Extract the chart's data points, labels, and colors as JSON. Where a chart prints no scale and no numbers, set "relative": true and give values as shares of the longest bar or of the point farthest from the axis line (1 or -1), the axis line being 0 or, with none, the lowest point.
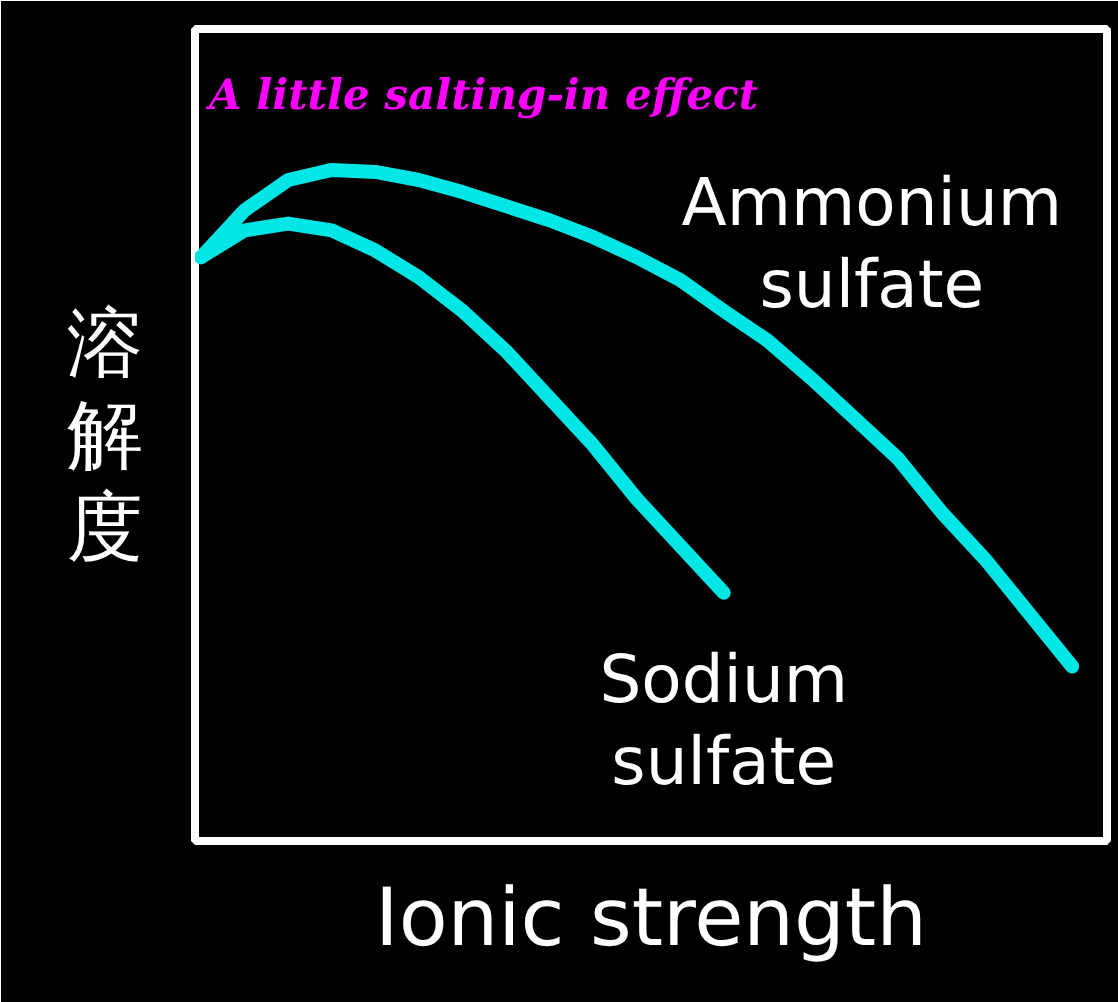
{
  "chart_data": {
    "type": "line",
    "relative": true,
    "xlabel": "Ionic strength",
    "ylabel": "溶解度",
    "categories": [
      null,
      null,
      null,
      null,
      null,
      null,
      null,
      null,
      null,
      null,
      null,
      null,
      null,
      null,
      null,
      null,
      null,
      null,
      null,
      null,
      null
    ],
    "series": [
      {
        "name": "Ammonium sulfate",
        "color": "#00e5e5",
        "values": [
          0.87,
          0.94,
          0.985,
          1.0,
          0.997,
          0.985,
          0.967,
          0.946,
          0.925,
          0.9,
          0.87,
          0.836,
          0.79,
          0.746,
          0.69,
          0.63,
          0.57,
          0.49,
          0.42,
          0.34,
          0.26
        ]
      },
      {
        "name": "Sodium sulfate",
        "color": "#00e5e5",
        "values": [
          0.87,
          0.91,
          0.92,
          0.91,
          0.88,
          0.84,
          0.79,
          0.73,
          0.66,
          0.59,
          0.51,
          0.44,
          0.37,
          null,
          null,
          null,
          null,
          null,
          null,
          null,
          null
        ]
      }
    ],
    "annotations": [
      "A little salting-in effect"
    ],
    "grid": false,
    "legend": false,
    "marker": "none",
    "line_style": "solid"
  }
}
